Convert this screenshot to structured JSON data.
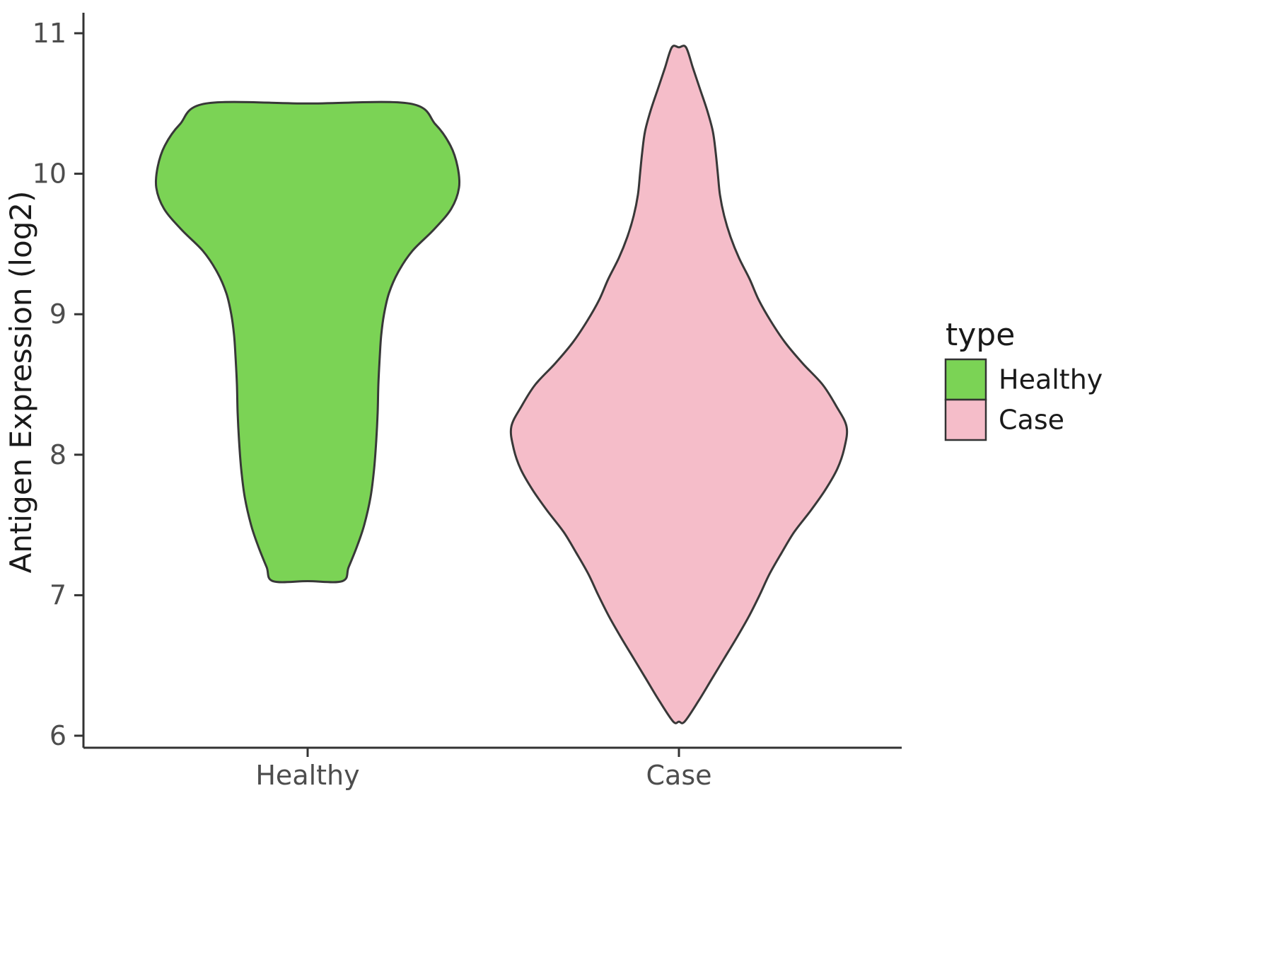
{
  "chart_data": {
    "type": "violin",
    "title": "",
    "xlabel": "",
    "ylabel": "Antigen Expression (log2)",
    "categories": [
      "Healthy",
      "Case"
    ],
    "y_ticks": [
      "11",
      "10",
      "9",
      "8",
      "7",
      "6"
    ],
    "y_tick_values": [
      11,
      10,
      9,
      8,
      7,
      6
    ],
    "ylim": [
      5.85,
      11.15
    ],
    "grid": false,
    "legend": {
      "title": "type",
      "position": "right",
      "entries": [
        {
          "label": "Healthy",
          "color": "#7bd355"
        },
        {
          "label": "Case",
          "color": "#f5bdc9"
        }
      ]
    },
    "colors": {
      "healthy_fill": "#7bd355",
      "case_fill": "#f5bdc9",
      "outline": "#383838",
      "axis": "#333333",
      "tick_text": "#4d4d4d",
      "title_text": "#1a1a1a"
    },
    "series": [
      {
        "name": "Healthy",
        "fill": "#7bd355",
        "stroke": "#383838",
        "y_min": 7.1,
        "y_max": 10.5,
        "cap_top": "flat",
        "cap_bottom": "flat",
        "profile": [
          [
            10.5,
            144
          ],
          [
            10.35,
            181
          ],
          [
            10.2,
            202
          ],
          [
            10.05,
            212
          ],
          [
            9.9,
            214
          ],
          [
            9.75,
            203
          ],
          [
            9.6,
            178
          ],
          [
            9.45,
            148
          ],
          [
            9.3,
            128
          ],
          [
            9.15,
            115
          ],
          [
            9.0,
            108
          ],
          [
            8.85,
            104
          ],
          [
            8.7,
            102
          ],
          [
            8.5,
            100
          ],
          [
            8.3,
            99
          ],
          [
            8.1,
            97
          ],
          [
            7.9,
            94
          ],
          [
            7.7,
            89
          ],
          [
            7.5,
            80
          ],
          [
            7.35,
            70
          ],
          [
            7.2,
            58
          ],
          [
            7.1,
            49
          ]
        ]
      },
      {
        "name": "Case",
        "fill": "#f5bdc9",
        "stroke": "#383838",
        "y_min": 6.1,
        "y_max": 10.9,
        "cap_top": "point",
        "cap_bottom": "point",
        "profile": [
          [
            10.9,
            10
          ],
          [
            10.75,
            20
          ],
          [
            10.6,
            30
          ],
          [
            10.45,
            40
          ],
          [
            10.3,
            48
          ],
          [
            10.15,
            52
          ],
          [
            10.0,
            55
          ],
          [
            9.85,
            58
          ],
          [
            9.7,
            64
          ],
          [
            9.55,
            73
          ],
          [
            9.4,
            85
          ],
          [
            9.25,
            100
          ],
          [
            9.1,
            113
          ],
          [
            8.95,
            130
          ],
          [
            8.8,
            150
          ],
          [
            8.65,
            175
          ],
          [
            8.5,
            203
          ],
          [
            8.35,
            222
          ],
          [
            8.2,
            237
          ],
          [
            8.05,
            234
          ],
          [
            7.9,
            224
          ],
          [
            7.75,
            207
          ],
          [
            7.6,
            186
          ],
          [
            7.45,
            163
          ],
          [
            7.3,
            145
          ],
          [
            7.15,
            128
          ],
          [
            7.0,
            114
          ],
          [
            6.85,
            99
          ],
          [
            6.7,
            82
          ],
          [
            6.55,
            64
          ],
          [
            6.4,
            46
          ],
          [
            6.25,
            28
          ],
          [
            6.1,
            8
          ]
        ]
      }
    ]
  }
}
